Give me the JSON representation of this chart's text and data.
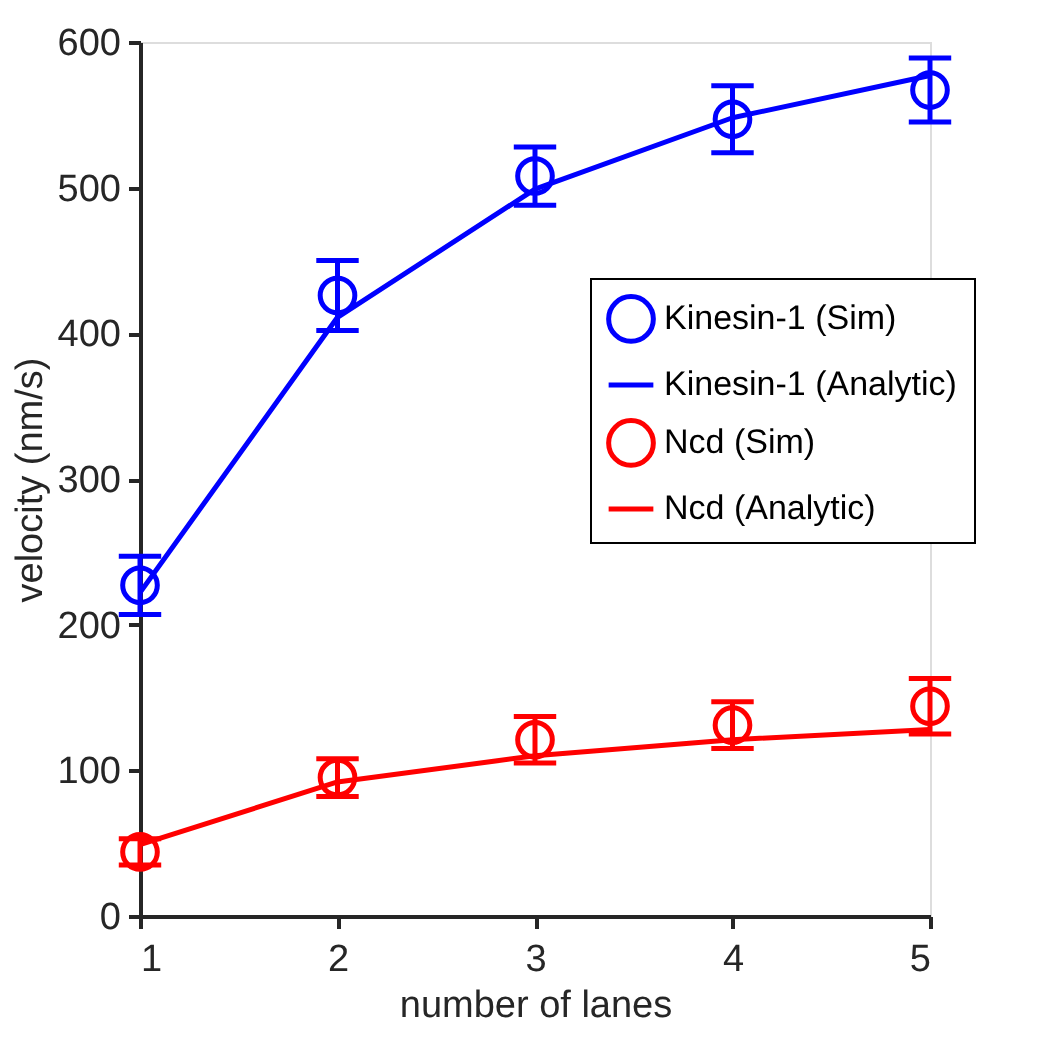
{
  "chart_data": {
    "type": "line",
    "xlabel": "number of lanes",
    "ylabel": "velocity (nm/s)",
    "x": [
      1,
      2,
      3,
      4,
      5
    ],
    "series": [
      {
        "name": "Kinesin-1 (Sim)",
        "type": "scatter",
        "marker": "circle",
        "color": "#0000ff",
        "values": [
          227,
          426,
          508,
          547,
          567
        ],
        "errors": [
          20,
          24,
          20,
          23,
          22
        ]
      },
      {
        "name": "Kinesin-1 (Analytic)",
        "color": "#0000ff",
        "values": [
          222,
          411,
          499,
          548,
          577
        ]
      },
      {
        "name": "Ncd (Sim)",
        "type": "scatter",
        "marker": "circle",
        "color": "#ff0000",
        "values": [
          44,
          95,
          121,
          131,
          144
        ],
        "errors": [
          9,
          13,
          16,
          16,
          19
        ]
      },
      {
        "name": "Ncd (Analytic)",
        "color": "#ff0000",
        "values": [
          49,
          92,
          110,
          121,
          128
        ]
      }
    ],
    "xlim": [
      1,
      5
    ],
    "xticks": [
      1,
      2,
      3,
      4,
      5
    ],
    "ylim": [
      0,
      600
    ],
    "yticks": [
      0,
      100,
      200,
      300,
      400,
      500,
      600
    ],
    "grid": false,
    "legend": "right",
    "line_style": "solid"
  }
}
